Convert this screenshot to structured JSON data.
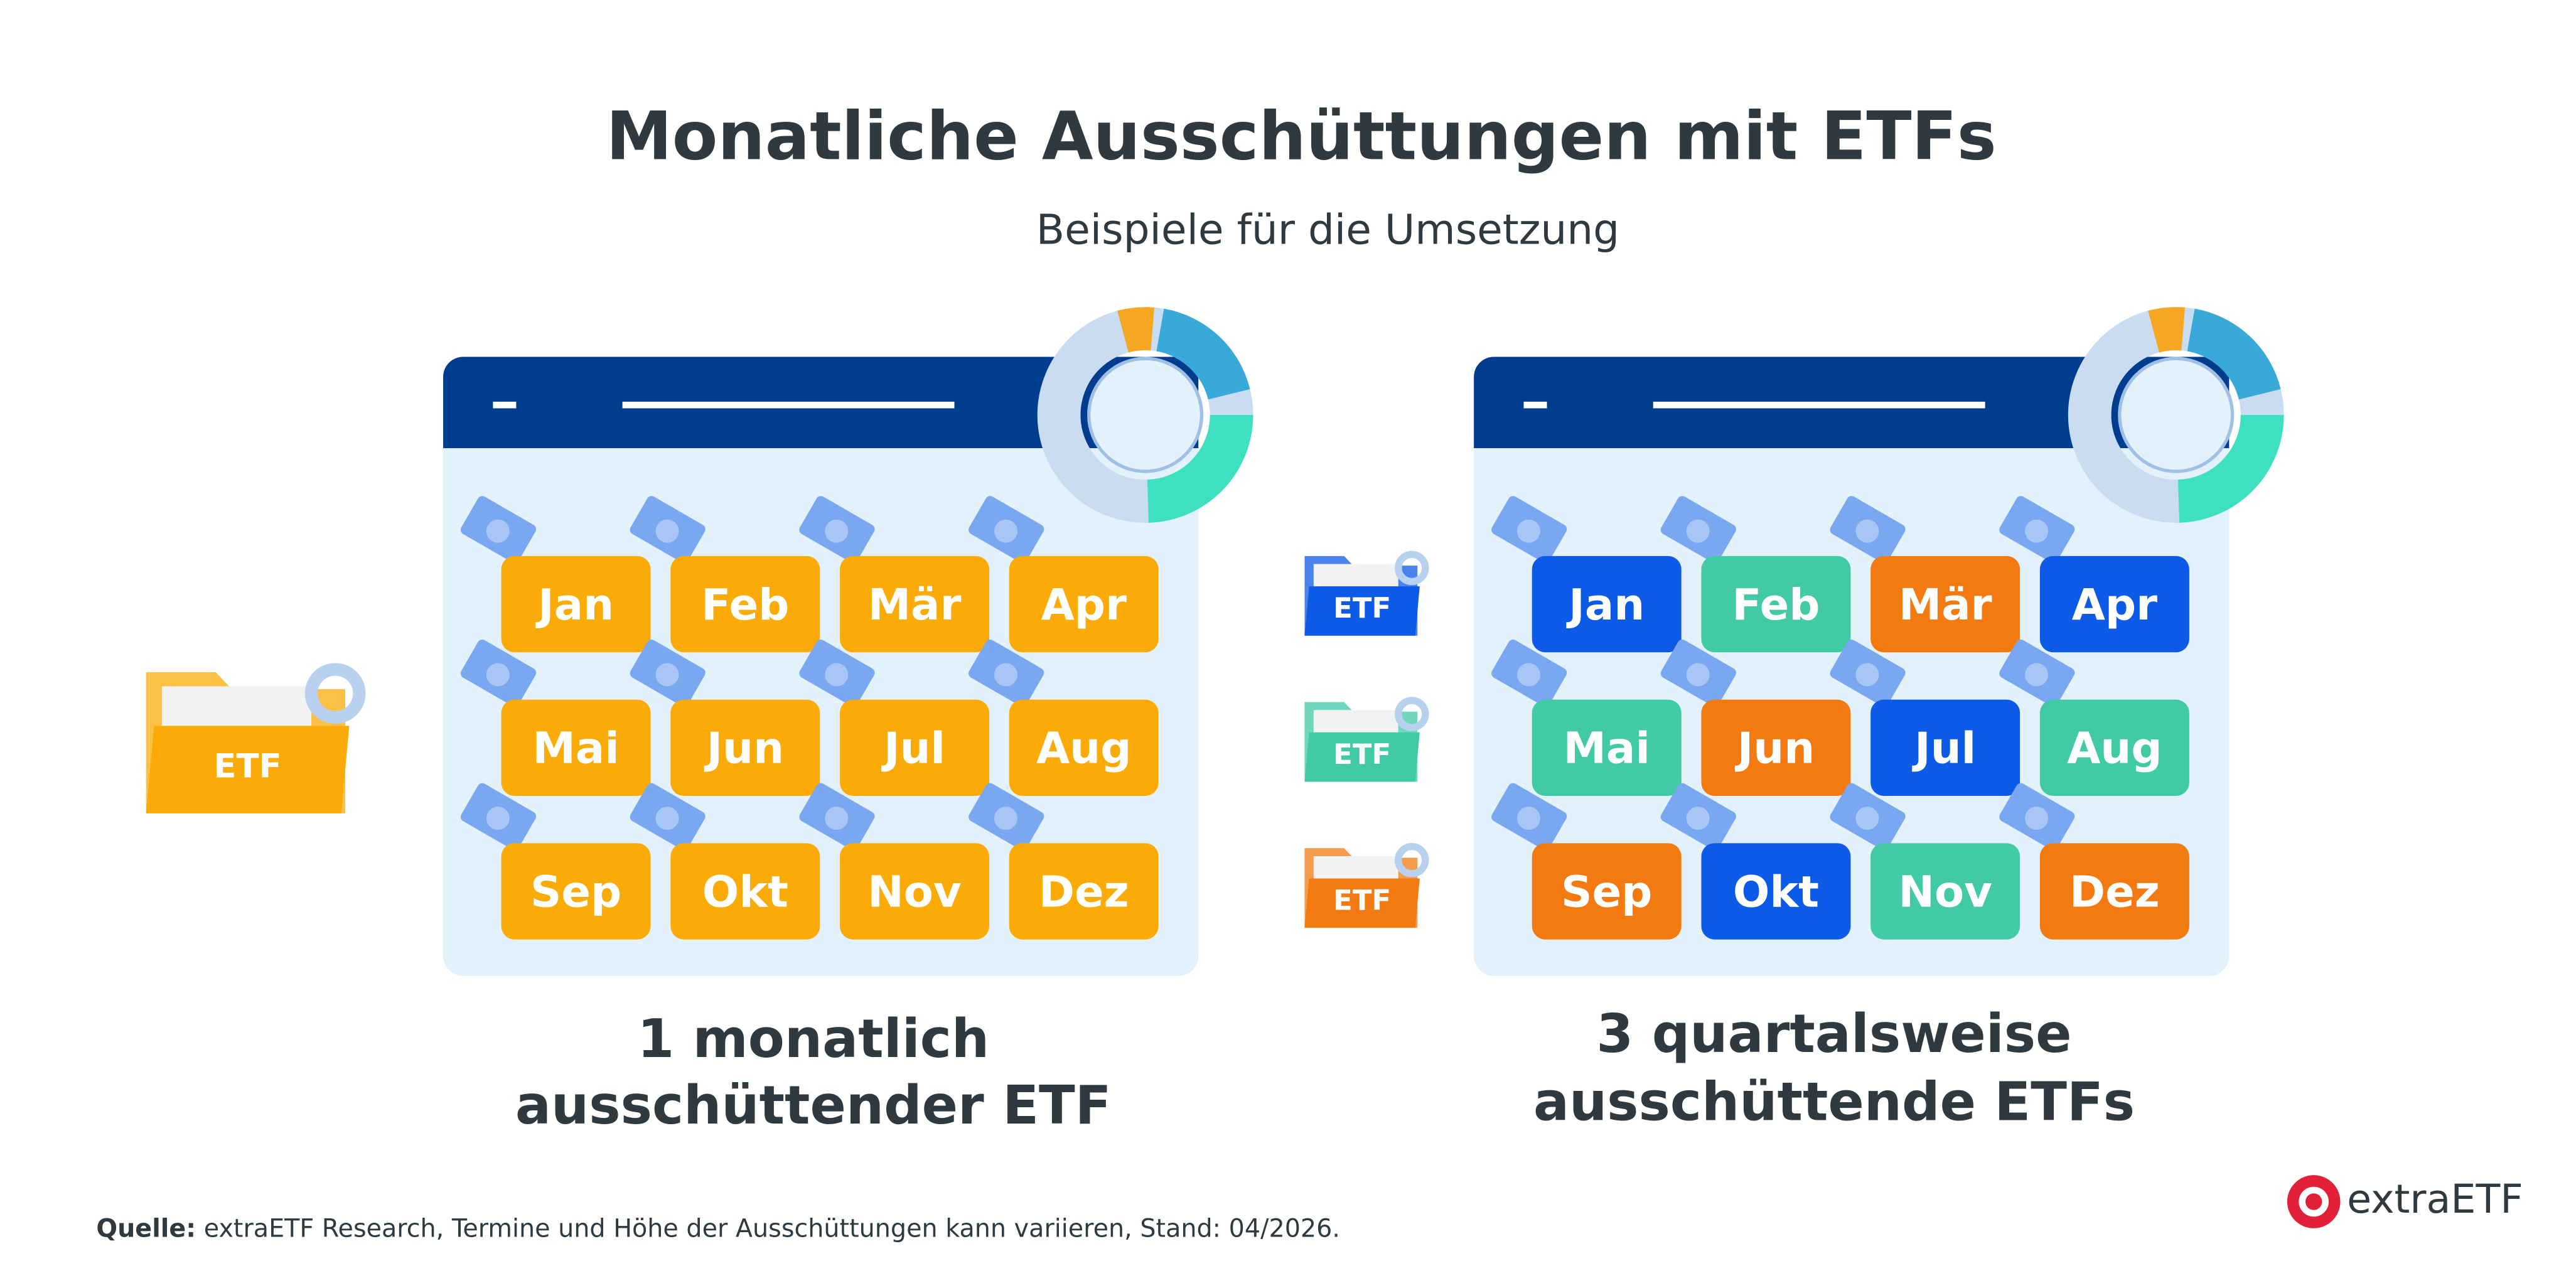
{
  "title": "Monatliche Ausschüttungen mit ETFs",
  "subtitle": "Beispiele für die Umsetzung",
  "left": {
    "folder_label": "ETF",
    "months": [
      "Jan",
      "Feb",
      "Mär",
      "Apr",
      "Mai",
      "Jun",
      "Jul",
      "Aug",
      "Sep",
      "Okt",
      "Nov",
      "Dez"
    ],
    "caption": [
      "1 monatlich",
      "ausschüttender ETF"
    ]
  },
  "right": {
    "folder_labels": [
      "ETF",
      "ETF",
      "ETF"
    ],
    "months": [
      "Jan",
      "Feb",
      "Mär",
      "Apr",
      "Mai",
      "Jun",
      "Jul",
      "Aug",
      "Sep",
      "Okt",
      "Nov",
      "Dez"
    ],
    "caption": [
      "3 quartalsweise",
      "ausschüttende ETFs"
    ]
  },
  "source": {
    "label": "Quelle:",
    "text": "extraETF Research, Termine und Höhe der Ausschüttungen kann variieren, Stand: 04/2026."
  },
  "logo": "extraETF"
}
